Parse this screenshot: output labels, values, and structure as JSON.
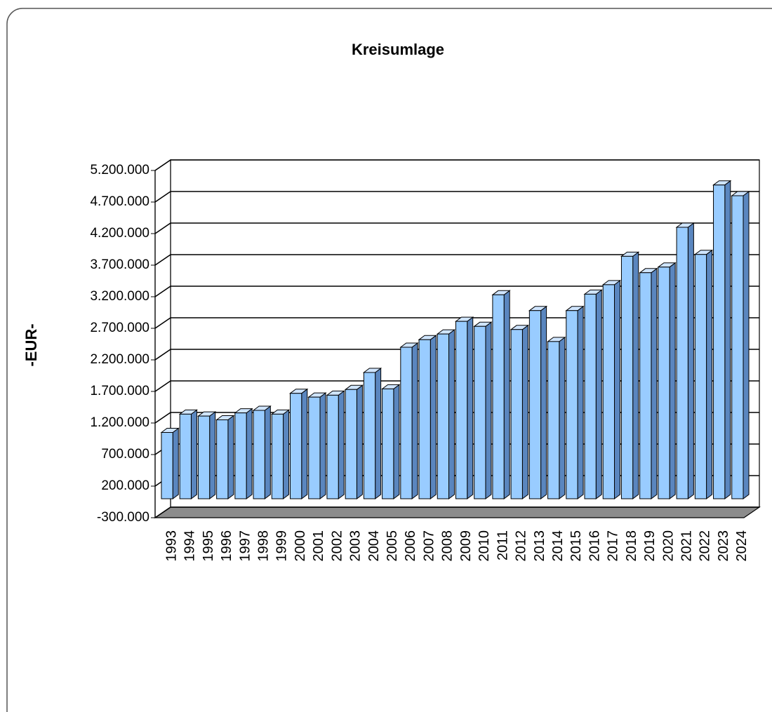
{
  "chart_data": {
    "type": "bar",
    "title": "Kreisumlage",
    "y_label": "-EUR-",
    "categories": [
      "1993",
      "1994",
      "1995",
      "1996",
      "1997",
      "1998",
      "1999",
      "2000",
      "2001",
      "2002",
      "2003",
      "2004",
      "2005",
      "2006",
      "2007",
      "2008",
      "2009",
      "2010",
      "2011",
      "2012",
      "2013",
      "2014",
      "2015",
      "2016",
      "2017",
      "2018",
      "2019",
      "2020",
      "2021",
      "2022",
      "2023",
      "2024"
    ],
    "values": [
      1050000,
      1340000,
      1310000,
      1250000,
      1360000,
      1400000,
      1340000,
      1670000,
      1610000,
      1640000,
      1730000,
      2000000,
      1740000,
      2400000,
      2520000,
      2610000,
      2810000,
      2730000,
      3230000,
      2680000,
      2980000,
      2490000,
      2980000,
      3240000,
      3390000,
      3840000,
      3580000,
      3670000,
      4300000,
      3870000,
      4970000,
      4800000
    ],
    "color": "#99ccff",
    "ylim": [
      -300000,
      5200000
    ],
    "yticks": [
      {
        "value": -300000,
        "label": "-300.000"
      },
      {
        "value": 200000,
        "label": "200.000"
      },
      {
        "value": 700000,
        "label": "700.000"
      },
      {
        "value": 1200000,
        "label": "1.200.000"
      },
      {
        "value": 1700000,
        "label": "1.700.000"
      },
      {
        "value": 2200000,
        "label": "2.200.000"
      },
      {
        "value": 2700000,
        "label": "2.700.000"
      },
      {
        "value": 3200000,
        "label": "3.200.000"
      },
      {
        "value": 3700000,
        "label": "3.700.000"
      },
      {
        "value": 4200000,
        "label": "4.200.000"
      },
      {
        "value": 4700000,
        "label": "4.700.000"
      },
      {
        "value": 5200000,
        "label": "5.200.000"
      }
    ],
    "grid": true
  }
}
